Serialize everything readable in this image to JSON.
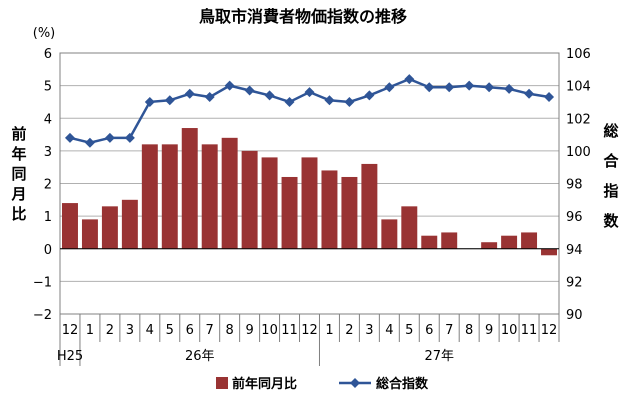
{
  "chart_data": {
    "type": "bar+line",
    "title": "鳥取市消費者物価指数の推移",
    "y_left_unit": "(%)",
    "y_left_label": "前年同月比",
    "y_right_label": "総合指数",
    "ylim_left": [
      -2,
      6
    ],
    "ylim_right": [
      90,
      106
    ],
    "y_left_ticks": [
      "6",
      "5",
      "4",
      "3",
      "2",
      "1",
      "0",
      "−1",
      "−2"
    ],
    "y_right_ticks": [
      "106",
      "104",
      "102",
      "100",
      "98",
      "96",
      "94",
      "92",
      "90"
    ],
    "categories": [
      "12",
      "1",
      "2",
      "3",
      "4",
      "5",
      "6",
      "7",
      "8",
      "9",
      "10",
      "11",
      "12",
      "1",
      "2",
      "3",
      "4",
      "5",
      "6",
      "7",
      "8",
      "9",
      "10",
      "11",
      "12"
    ],
    "year_labels": [
      "H25",
      "26年",
      "27年"
    ],
    "grid": true,
    "legend_position": "bottom",
    "series": [
      {
        "name": "前年同月比",
        "type": "bar",
        "axis": "left",
        "color": "#993333",
        "values": [
          1.4,
          0.9,
          1.3,
          1.5,
          3.2,
          3.2,
          3.7,
          3.2,
          3.4,
          3.0,
          2.8,
          2.2,
          2.8,
          2.4,
          2.2,
          2.6,
          0.9,
          1.3,
          0.4,
          0.5,
          0.0,
          0.2,
          0.4,
          0.5,
          -0.2
        ]
      },
      {
        "name": "総合指数",
        "type": "line",
        "axis": "right",
        "color": "#2F5597",
        "values": [
          100.8,
          100.5,
          100.8,
          100.8,
          103.0,
          103.1,
          103.5,
          103.3,
          104.0,
          103.7,
          103.4,
          103.0,
          103.6,
          103.1,
          103.0,
          103.4,
          103.9,
          104.4,
          103.9,
          103.9,
          104.0,
          103.9,
          103.8,
          103.5,
          103.3
        ]
      }
    ]
  }
}
